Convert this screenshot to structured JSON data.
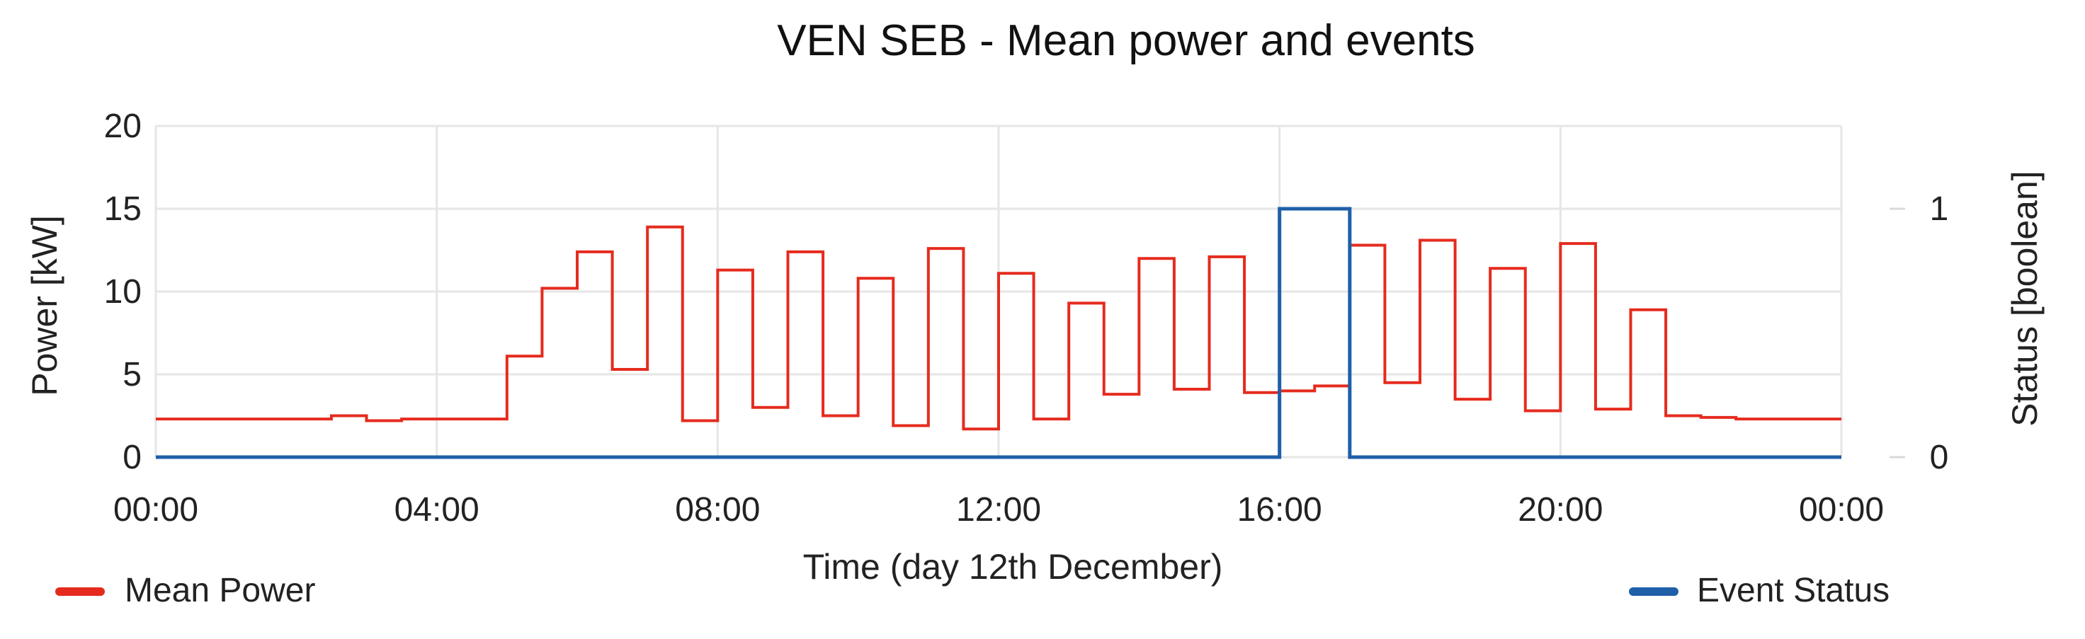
{
  "chart_data": {
    "type": "line",
    "title": "VEN SEB - Mean power and events",
    "xlabel": "Time (day 12th December)",
    "ylabel_left": "Power [kW]",
    "ylabel_right": "Status [boolean]",
    "xlim": [
      0,
      24
    ],
    "ylim_left": [
      0,
      20
    ],
    "ylim_right": [
      0,
      1.333333
    ],
    "x_ticks": [
      "00:00",
      "04:00",
      "08:00",
      "12:00",
      "16:00",
      "20:00",
      "00:00"
    ],
    "left_ticks": [
      "0",
      "5",
      "10",
      "15",
      "20"
    ],
    "right_ticks": [
      "0",
      "1"
    ],
    "grid": true,
    "legend": {
      "placement": "bottom",
      "items": [
        "Mean Power",
        "Event Status"
      ]
    },
    "colors": {
      "mean_power": "#e52b1e",
      "event_status": "#1f5fa8"
    },
    "series": [
      {
        "name": "Mean Power",
        "axis": "left",
        "step": true,
        "x": [
          0,
          0.5,
          1,
          1.5,
          2,
          2.5,
          3,
          3.5,
          4,
          4.5,
          5,
          5.5,
          6,
          6.5,
          7,
          7.5,
          8,
          8.5,
          9,
          9.5,
          10,
          10.5,
          11,
          11.5,
          12,
          12.5,
          13,
          13.5,
          14,
          14.5,
          15,
          15.5,
          16,
          16.5,
          17,
          17.5,
          18,
          18.5,
          19,
          19.5,
          20,
          20.5,
          21,
          21.5,
          22,
          22.5,
          23,
          23.5,
          24
        ],
        "values": [
          2.3,
          2.3,
          2.3,
          2.3,
          2.3,
          2.5,
          2.2,
          2.3,
          2.3,
          2.3,
          6.1,
          10.2,
          12.4,
          5.3,
          13.9,
          2.2,
          11.3,
          3.0,
          12.4,
          2.5,
          10.8,
          1.9,
          12.6,
          1.7,
          11.1,
          2.3,
          9.3,
          3.8,
          12.0,
          4.1,
          12.1,
          3.9,
          4.0,
          4.3,
          12.8,
          4.5,
          13.1,
          3.5,
          11.4,
          2.8,
          12.9,
          2.9,
          8.9,
          2.5,
          2.4,
          2.3,
          2.3,
          2.3,
          2.3
        ]
      },
      {
        "name": "Event Status",
        "axis": "right",
        "step": true,
        "x": [
          0,
          16,
          17,
          24
        ],
        "values": [
          0,
          1,
          0,
          0
        ]
      }
    ]
  }
}
